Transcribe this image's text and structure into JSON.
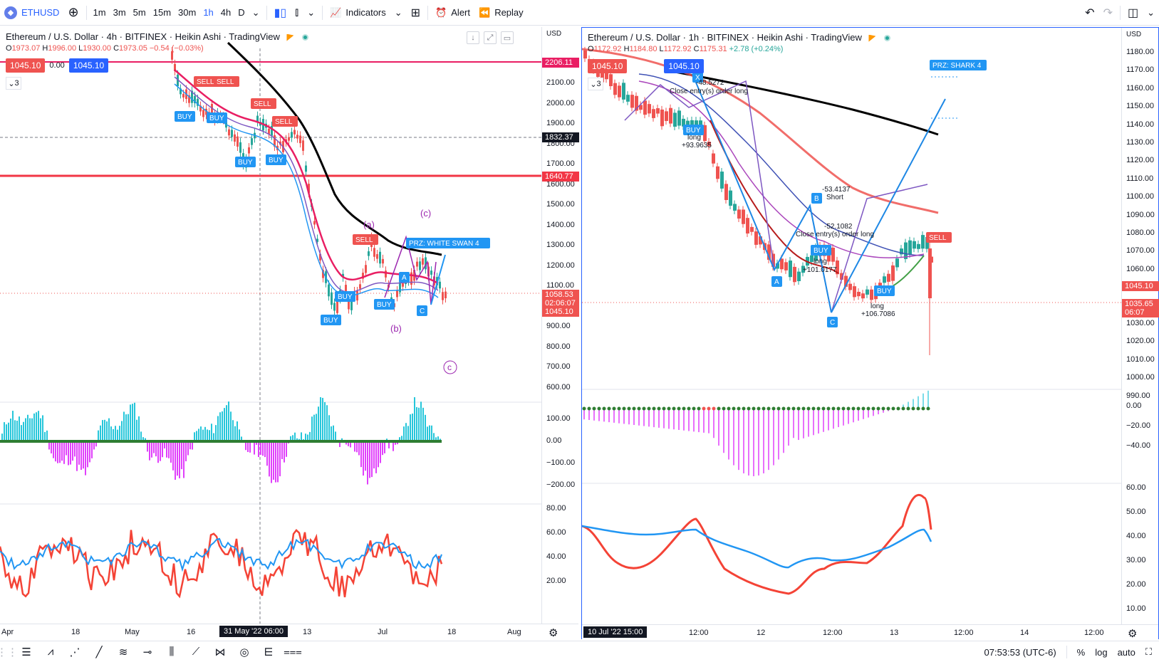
{
  "toolbar": {
    "symbol": "ETHUSD",
    "symbol_icon": "eth-icon",
    "timeframes": [
      "1m",
      "3m",
      "5m",
      "15m",
      "30m",
      "1h",
      "4h",
      "D"
    ],
    "active_timeframe": "1h",
    "indicators_label": "Indicators",
    "alert_label": "Alert",
    "replay_label": "Replay"
  },
  "left_chart": {
    "title": "Ethereum / U.S. Dollar · 4h · BITFINEX · Heikin Ashi · TradingView",
    "ohlc": {
      "o": "1973.07",
      "h": "1996.00",
      "l": "1930.00",
      "c": "1973.05",
      "chg": "−0.54 (−0.03%)"
    },
    "bid": "1045.10",
    "spread": "0.00",
    "ask": "1045.10",
    "layers": "3",
    "currency": "USD",
    "price_ticks": [
      "2100.00",
      "2000.00",
      "1900.00",
      "1800.00",
      "1700.00",
      "1600.00",
      "1500.00",
      "1400.00",
      "1300.00",
      "1200.00",
      "1100.00",
      "1000.00",
      "900.00",
      "800.00",
      "700.00",
      "600.00"
    ],
    "osc_ticks": [
      "100.00",
      "0.00",
      "−100.00",
      "−200.00"
    ],
    "rsi_ticks": [
      "80.00",
      "60.00",
      "40.00",
      "20.00"
    ],
    "badges": {
      "top_line": "2206.11",
      "crosshair": "1832.37",
      "red_line": "1640.77",
      "last_price": "1058.53",
      "countdown": "02:06:07",
      "bid_ask": "1045.10"
    },
    "time_labels": [
      "Apr",
      "18",
      "May",
      "16",
      "13",
      "Jul",
      "18",
      "Aug"
    ],
    "time_badge": "31 May '22  06:00",
    "labels": {
      "sell": "SELL",
      "buy": "BUY",
      "prz": "PRZ: WHITE SWAN 4",
      "a": "(a)",
      "b": "(b)",
      "c_top": "(c)",
      "c_bottom": "c",
      "pt_a": "A",
      "pt_c": "C"
    }
  },
  "right_chart": {
    "title": "Ethereum / U.S. Dollar · 1h · BITFINEX · Heikin Ashi · TradingView",
    "ohlc": {
      "o": "1172.92",
      "h": "1184.80",
      "l": "1172.92",
      "c": "1175.31",
      "chg": "+2.78 (+0.24%)"
    },
    "bid": "1045.10",
    "ask": "1045.10",
    "layers": "3",
    "currency": "USD",
    "price_ticks": [
      "1180.00",
      "1170.00",
      "1160.00",
      "1150.00",
      "1140.00",
      "1130.00",
      "1120.00",
      "1110.00",
      "1100.00",
      "1090.00",
      "1080.00",
      "1070.00",
      "1060.00",
      "1050.00",
      "1040.00",
      "1030.00",
      "1020.00",
      "1010.00",
      "1000.00",
      "990.00"
    ],
    "osc_ticks": [
      "0.00",
      "−20.00",
      "−40.00"
    ],
    "rsi_ticks": [
      "60.00",
      "50.00",
      "40.00",
      "30.00",
      "20.00",
      "10.00"
    ],
    "badges": {
      "bid_ask": "1045.10",
      "last_price": "1035.65",
      "countdown": "06:07"
    },
    "time_labels": [
      "12:00",
      "12",
      "12:00",
      "13",
      "12:00",
      "14",
      "12:00"
    ],
    "time_badge": "10 Jul '22   15:00",
    "labels": {
      "prz": "PRZ: SHARK 4",
      "x": "X",
      "b": "B",
      "a": "A",
      "c": "C",
      "short1": "-48.5272",
      "close1": "Close entry(s) order long",
      "long1": "long",
      "long1v": "+93.9635",
      "short2v": "-53.4137",
      "short2": "Short",
      "close2v": "-52.1082",
      "close2": "Close entry(s) order long",
      "long2": "long",
      "long2v": "+101.0177",
      "long3": "long",
      "long3v": "+106.7086",
      "buy": "BUY",
      "sell": "SELL"
    }
  },
  "bottombar": {
    "time": "07:53:53 (UTC-6)",
    "pct": "%",
    "log": "log",
    "auto": "auto"
  }
}
